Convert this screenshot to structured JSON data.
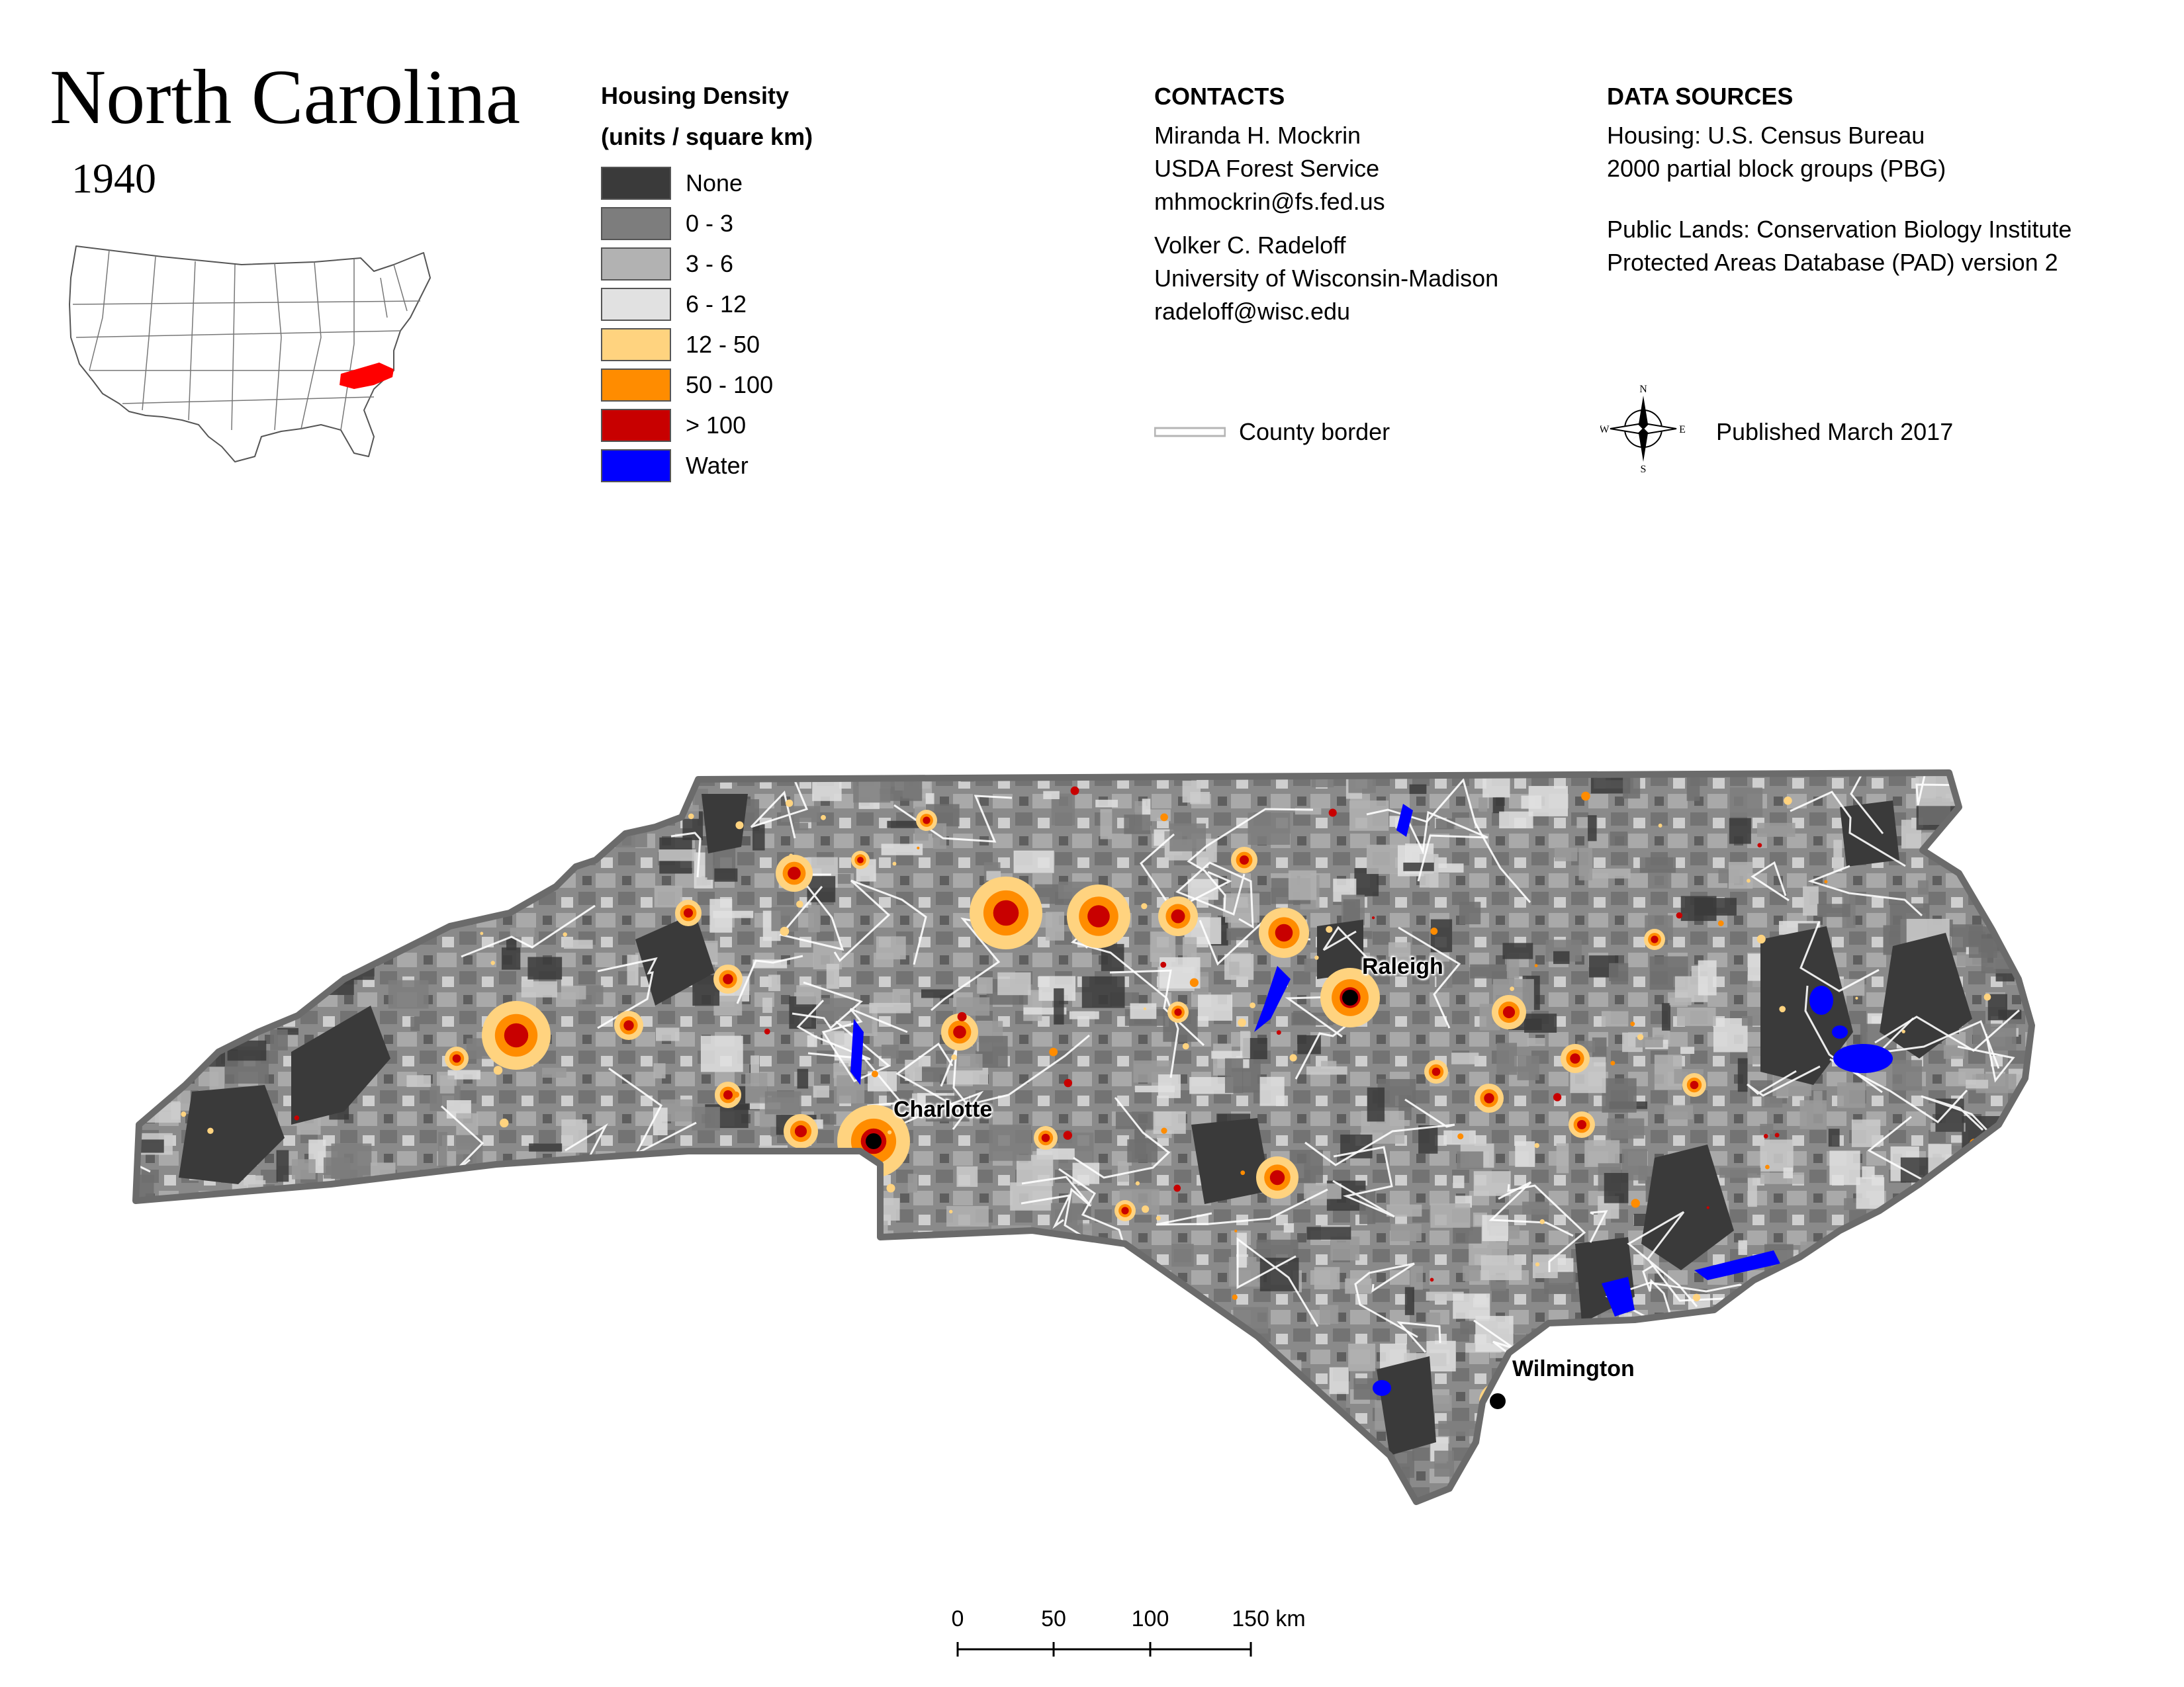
{
  "title": "North Carolina",
  "year": "1940",
  "legend": {
    "title_line1": "Housing Density",
    "title_line2": "(units / square km)",
    "items": [
      {
        "label": "None",
        "color": "#3a3a3a"
      },
      {
        "label": "0 - 3",
        "color": "#7d7d7d"
      },
      {
        "label": "3 - 6",
        "color": "#b2b2b2"
      },
      {
        "label": "6 - 12",
        "color": "#e1e1e1"
      },
      {
        "label": "12 - 50",
        "color": "#ffd37f"
      },
      {
        "label": "50 - 100",
        "color": "#ff8c00"
      },
      {
        "label": "> 100",
        "color": "#c80000"
      },
      {
        "label": "Water",
        "color": "#0000ff"
      }
    ]
  },
  "contacts": {
    "heading": "CONTACTS",
    "person1": {
      "name": "Miranda H. Mockrin",
      "org": "USDA Forest Service",
      "email": "mhmockrin@fs.fed.us"
    },
    "person2": {
      "name": "Volker C. Radeloff",
      "org": "University of Wisconsin-Madison",
      "email": "radeloff@wisc.edu"
    }
  },
  "data_sources": {
    "heading": "DATA SOURCES",
    "housing_line1": "Housing: U.S. Census Bureau",
    "housing_line2": "2000 partial block groups (PBG)",
    "public_line1": "Public Lands: Conservation Biology Institute",
    "public_line2": "Protected Areas Database (PAD) version 2"
  },
  "county_border_label": "County border",
  "published": "Published March 2017",
  "compass": {
    "n": "N",
    "s": "S",
    "e": "E",
    "w": "W"
  },
  "scale_bar": {
    "ticks": [
      "0",
      "50",
      "100",
      "150 km"
    ]
  },
  "cities": [
    {
      "name": "Charlotte"
    },
    {
      "name": "Raleigh"
    },
    {
      "name": "Wilmington"
    }
  ],
  "colors": {
    "inset_highlight": "#ff0000",
    "state_outline": "#6b6b6b",
    "county_lines": "#ffffff"
  }
}
